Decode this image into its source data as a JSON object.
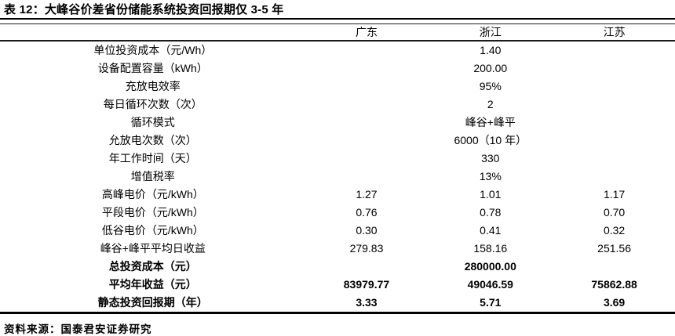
{
  "title": "表 12：大峰谷价差省份储能系统投资回报期仅 3-5 年",
  "source_note": "资料来源：国泰君安证券研究",
  "colors": {
    "text": "#000000",
    "rule": "#1a1a1a",
    "background": "#ffffff"
  },
  "table": {
    "columns": [
      "广东",
      "浙江",
      "江苏"
    ],
    "rows": [
      {
        "label": "单位投资成本（元/Wh）",
        "values": [
          "",
          "1.40",
          ""
        ],
        "bold": false
      },
      {
        "label": "设备配置容量（kWh）",
        "values": [
          "",
          "200.00",
          ""
        ],
        "bold": false
      },
      {
        "label": "充放电效率",
        "values": [
          "",
          "95%",
          ""
        ],
        "bold": false
      },
      {
        "label": "每日循环次数（次）",
        "values": [
          "",
          "2",
          ""
        ],
        "bold": false
      },
      {
        "label": "循环模式",
        "values": [
          "",
          "峰谷+峰平",
          ""
        ],
        "bold": false
      },
      {
        "label": "允放电次数（次）",
        "values": [
          "",
          "6000（10 年）",
          ""
        ],
        "bold": false
      },
      {
        "label": "年工作时间（天）",
        "values": [
          "",
          "330",
          ""
        ],
        "bold": false
      },
      {
        "label": "增值税率",
        "values": [
          "",
          "13%",
          ""
        ],
        "bold": false
      },
      {
        "label": "高峰电价（元/kWh）",
        "values": [
          "1.27",
          "1.01",
          "1.17"
        ],
        "bold": false
      },
      {
        "label": "平段电价（元/kWh）",
        "values": [
          "0.76",
          "0.78",
          "0.70"
        ],
        "bold": false
      },
      {
        "label": "低谷电价（元/kWh）",
        "values": [
          "0.30",
          "0.41",
          "0.32"
        ],
        "bold": false
      },
      {
        "label": "峰谷+峰平平均日收益",
        "values": [
          "279.83",
          "158.16",
          "251.56"
        ],
        "bold": false
      },
      {
        "label": "总投资成本（元）",
        "values": [
          "",
          "280000.00",
          ""
        ],
        "bold": true
      },
      {
        "label": "平均年收益（元）",
        "values": [
          "83979.77",
          "49046.59",
          "75862.88"
        ],
        "bold": true
      },
      {
        "label": "静态投资回报期（年）",
        "values": [
          "3.33",
          "5.71",
          "3.69"
        ],
        "bold": true
      }
    ]
  }
}
